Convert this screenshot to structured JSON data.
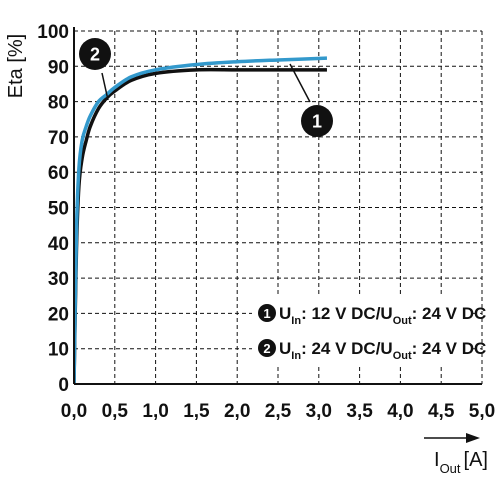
{
  "chart_data": {
    "type": "line",
    "title": "",
    "ylabel": "Eta [%]",
    "xlabel": "I_Out [A]",
    "xlabel_main": "I",
    "xlabel_sub": "Out",
    "xlabel_unit": "[A]",
    "xlim": [
      0,
      5.0
    ],
    "ylim": [
      0,
      100
    ],
    "grid": true,
    "x_ticks": [
      "0,0",
      "0,5",
      "1,0",
      "1,5",
      "2,0",
      "2,5",
      "3,0",
      "3,5",
      "4,0",
      "4,5",
      "5,0"
    ],
    "y_ticks": [
      "0",
      "10",
      "20",
      "30",
      "40",
      "50",
      "60",
      "70",
      "80",
      "90",
      "100"
    ],
    "colors": {
      "series1": "#111111",
      "series2": "#3399cc",
      "grid": "#111111",
      "legend_bg": "#ffffff"
    },
    "legend_position": "bottom-right",
    "series": [
      {
        "name": "1",
        "legend_label": "U_In: 12 V DC/U_Out: 24 V DC",
        "legend_parts": [
          "U",
          "In",
          ": 12 V DC/U",
          "Out",
          ": 24 V DC"
        ],
        "x": [
          0,
          0.03,
          0.06,
          0.1,
          0.15,
          0.2,
          0.3,
          0.4,
          0.5,
          0.7,
          1.0,
          1.5,
          2.0,
          2.5,
          3.1
        ],
        "values": [
          0,
          38,
          56,
          64,
          69,
          73,
          78,
          81,
          83,
          86,
          88,
          89,
          89,
          89,
          89
        ]
      },
      {
        "name": "2",
        "legend_label": "U_In: 24 V DC/U_Out: 24 V DC",
        "legend_parts": [
          "U",
          "In",
          ": 24 V DC/U",
          "Out",
          ": 24 V DC"
        ],
        "x": [
          0,
          0.03,
          0.06,
          0.1,
          0.15,
          0.2,
          0.3,
          0.4,
          0.5,
          0.7,
          1.0,
          1.5,
          2.0,
          2.5,
          3.1
        ],
        "values": [
          0,
          43,
          61,
          69,
          73,
          76,
          80,
          82,
          84,
          87,
          89,
          90.5,
          91.3,
          91.8,
          92.3
        ]
      }
    ]
  }
}
